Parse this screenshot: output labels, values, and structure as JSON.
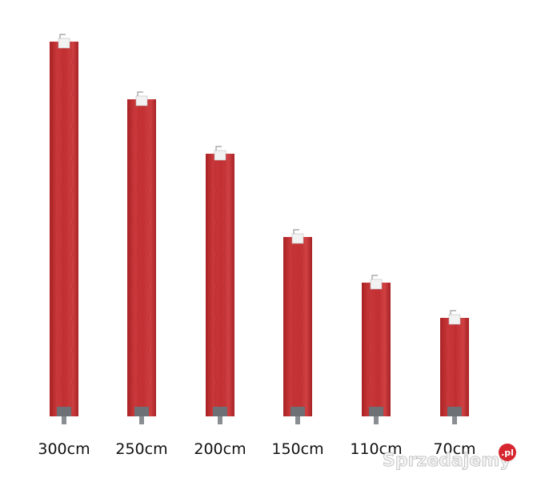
{
  "posts": [
    {
      "label": "300cm"
    },
    {
      "label": "250cm"
    },
    {
      "label": "200cm"
    },
    {
      "label": "150cm"
    },
    {
      "label": "110cm"
    },
    {
      "label": "70cm"
    }
  ],
  "watermark": {
    "text": "Sprzedajemy",
    "badge": ".pl"
  }
}
